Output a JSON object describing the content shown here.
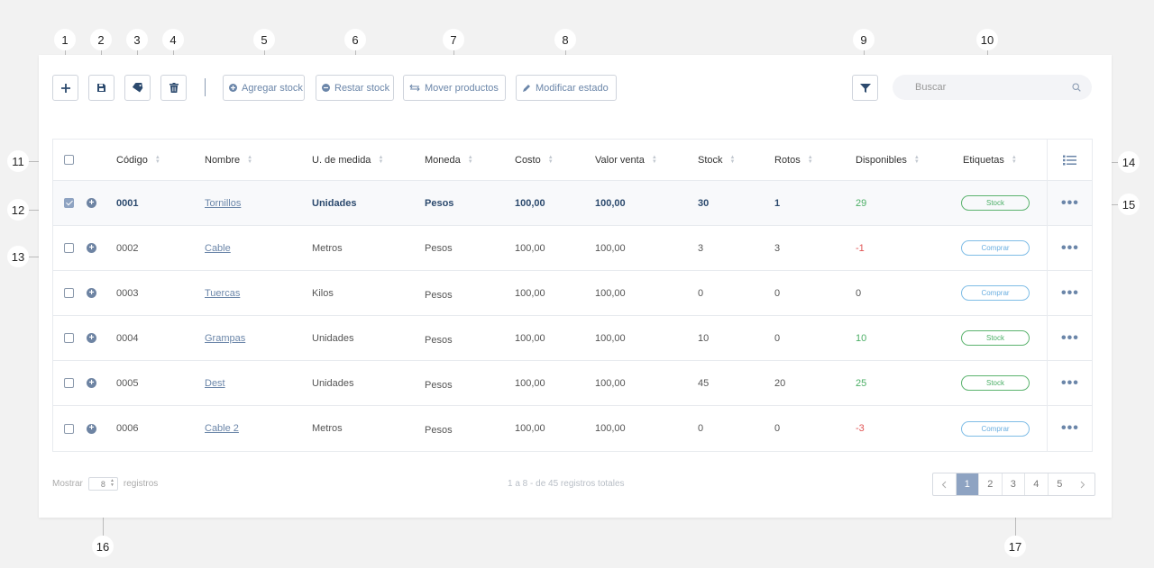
{
  "callouts": [
    "1",
    "2",
    "3",
    "4",
    "5",
    "6",
    "7",
    "8",
    "9",
    "10",
    "11",
    "12",
    "13",
    "14",
    "15",
    "16",
    "17"
  ],
  "toolbar": {
    "agregar_stock": "Agregar stock",
    "restar_stock": "Restar stock",
    "mover_productos": "Mover productos",
    "modificar_estado": "Modificar estado",
    "icons": [
      "plus-icon",
      "save-icon",
      "tag-icon",
      "trash-icon",
      "filter-icon"
    ]
  },
  "search": {
    "placeholder": "Buscar"
  },
  "table": {
    "headers": [
      "Código",
      "Nombre",
      "U. de medida",
      "Moneda",
      "Costo",
      "Valor venta",
      "Stock",
      "Rotos",
      "Disponibles",
      "Etiquetas"
    ],
    "rows": [
      {
        "codigo": "0001",
        "nombre": "Tornillos",
        "unidad": "Unidades",
        "moneda": "Pesos",
        "costo": "100,00",
        "venta": "100,00",
        "stock": "30",
        "rotos": "1",
        "disponibles": "29",
        "disp_color": "green",
        "etiqueta": "Stock",
        "tag_type": "stock",
        "selected": true
      },
      {
        "codigo": "0002",
        "nombre": "Cable",
        "unidad": "Metros",
        "moneda": "Pesos",
        "costo": "100,00",
        "venta": "100,00",
        "stock": "3",
        "rotos": "3",
        "disponibles": "-1",
        "disp_color": "red",
        "etiqueta": "Comprar",
        "tag_type": "comprar",
        "selected": false
      },
      {
        "codigo": "0003",
        "nombre": "Tuercas",
        "unidad": "Kilos",
        "moneda": "Pesos",
        "costo": "100,00",
        "venta": "100,00",
        "stock": "0",
        "rotos": "0",
        "disponibles": "0",
        "disp_color": "none",
        "etiqueta": "Comprar",
        "tag_type": "comprar",
        "selected": false
      },
      {
        "codigo": "0004",
        "nombre": "Grampas",
        "unidad": "Unidades",
        "moneda": "Pesos",
        "costo": "100,00",
        "venta": "100,00",
        "stock": "10",
        "rotos": "0",
        "disponibles": "10",
        "disp_color": "green",
        "etiqueta": "Stock",
        "tag_type": "stock",
        "selected": false
      },
      {
        "codigo": "0005",
        "nombre": "Dest",
        "unidad": "Unidades",
        "moneda": "Pesos",
        "costo": "100,00",
        "venta": "100,00",
        "stock": "45",
        "rotos": "20",
        "disponibles": "25",
        "disp_color": "green",
        "etiqueta": "Stock",
        "tag_type": "stock",
        "selected": false
      },
      {
        "codigo": "0006",
        "nombre": "Cable 2",
        "unidad": "Metros",
        "moneda": "Pesos",
        "costo": "100,00",
        "venta": "100,00",
        "stock": "0",
        "rotos": "0",
        "disponibles": "-3",
        "disp_color": "red",
        "etiqueta": "Comprar",
        "tag_type": "comprar",
        "selected": false
      }
    ]
  },
  "footer": {
    "mostrar": "Mostrar",
    "per_page": "8",
    "registros": "registros",
    "total": "1 a 8 - de 45 registros totales",
    "pages": [
      "1",
      "2",
      "3",
      "4",
      "5"
    ],
    "active_page": "1"
  },
  "colors": {
    "accent": "#8ea3c2",
    "primary": "#2c4a6e",
    "link": "#6b86a9",
    "green": "#4caf66",
    "red": "#e05252",
    "comprar": "#6aaee0"
  }
}
